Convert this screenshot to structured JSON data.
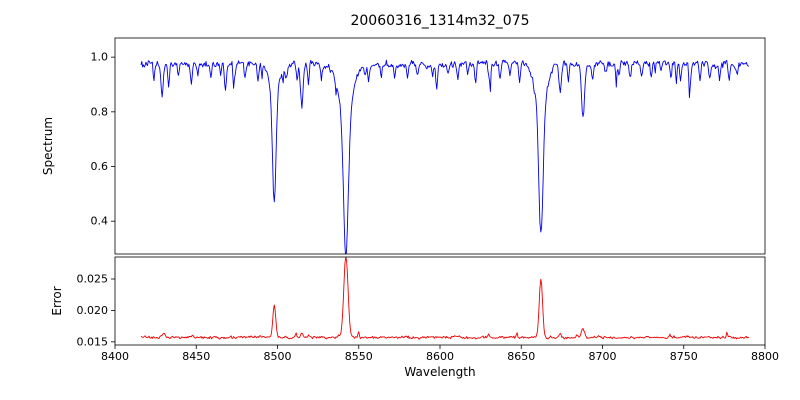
{
  "figure": {
    "background": "#ffffff",
    "frame_color": "#000000"
  },
  "chart_data": {
    "type": "line",
    "title": "20060316_1314m32_075",
    "xlabel": "Wavelength",
    "legend": null,
    "grid": false,
    "x_range": [
      8400,
      8800
    ],
    "x_data_range": [
      8416,
      8790
    ],
    "x_step": 0.5,
    "x_ticks": [
      {
        "v": 8400,
        "label": "8400"
      },
      {
        "v": 8450,
        "label": "8450"
      },
      {
        "v": 8500,
        "label": "8500"
      },
      {
        "v": 8550,
        "label": "8550"
      },
      {
        "v": 8600,
        "label": "8600"
      },
      {
        "v": 8650,
        "label": "8650"
      },
      {
        "v": 8700,
        "label": "8700"
      },
      {
        "v": 8750,
        "label": "8750"
      },
      {
        "v": 8800,
        "label": "8800"
      }
    ],
    "panels": [
      {
        "name": "spectrum",
        "ylabel": "Spectrum",
        "ylim": [
          0.28,
          1.07
        ],
        "y_ticks": [
          {
            "v": 0.4,
            "label": "0.4"
          },
          {
            "v": 0.6,
            "label": "0.6"
          },
          {
            "v": 0.8,
            "label": "0.8"
          },
          {
            "v": 1.0,
            "label": "1.0"
          }
        ],
        "color": "#0000ee",
        "baseline": 0.975,
        "noise": 0.02,
        "line_sign": -1,
        "texture": {
          "type": "dips",
          "prob": 0.035,
          "min": 0.02,
          "max": 0.11
        },
        "lines": [
          [
            8498.0,
            0.4,
            1.1
          ],
          [
            8498.0,
            0.1,
            3.0
          ],
          [
            8542.1,
            0.52,
            1.5
          ],
          [
            8542.1,
            0.17,
            4.5
          ],
          [
            8662.1,
            0.48,
            1.3
          ],
          [
            8662.1,
            0.15,
            3.5
          ],
          [
            8424,
            0.06,
            0.5
          ],
          [
            8429,
            0.12,
            0.7
          ],
          [
            8433,
            0.09,
            0.5
          ],
          [
            8439,
            0.05,
            0.5
          ],
          [
            8447,
            0.07,
            0.6
          ],
          [
            8451,
            0.04,
            0.5
          ],
          [
            8459,
            0.05,
            0.5
          ],
          [
            8465,
            0.04,
            0.4
          ],
          [
            8468,
            0.09,
            0.6
          ],
          [
            8474,
            0.04,
            0.5
          ],
          [
            8480,
            0.05,
            0.5
          ],
          [
            8488,
            0.06,
            0.5
          ],
          [
            8505,
            0.05,
            0.5
          ],
          [
            8512,
            0.06,
            0.5
          ],
          [
            8515,
            0.16,
            0.8
          ],
          [
            8519,
            0.07,
            0.5
          ],
          [
            8527,
            0.05,
            0.5
          ],
          [
            8536,
            0.04,
            0.4
          ],
          [
            8556,
            0.05,
            0.5
          ],
          [
            8564,
            0.04,
            0.5
          ],
          [
            8572,
            0.05,
            0.5
          ],
          [
            8580,
            0.04,
            0.5
          ],
          [
            8586,
            0.05,
            0.5
          ],
          [
            8598,
            0.08,
            0.6
          ],
          [
            8605,
            0.04,
            0.5
          ],
          [
            8611,
            0.05,
            0.5
          ],
          [
            8617,
            0.04,
            0.4
          ],
          [
            8622,
            0.07,
            0.5
          ],
          [
            8630,
            0.04,
            0.5
          ],
          [
            8637,
            0.05,
            0.5
          ],
          [
            8643,
            0.04,
            0.5
          ],
          [
            8649,
            0.06,
            0.5
          ],
          [
            8674,
            0.1,
            0.7
          ],
          [
            8679,
            0.07,
            0.5
          ],
          [
            8688,
            0.19,
            0.9
          ],
          [
            8694,
            0.05,
            0.5
          ],
          [
            8702,
            0.04,
            0.5
          ],
          [
            8710,
            0.05,
            0.5
          ],
          [
            8717,
            0.06,
            0.5
          ],
          [
            8724,
            0.04,
            0.5
          ],
          [
            8730,
            0.05,
            0.5
          ],
          [
            8736,
            0.04,
            0.5
          ],
          [
            8742,
            0.05,
            0.5
          ],
          [
            8748,
            0.06,
            0.5
          ],
          [
            8754,
            0.04,
            0.5
          ],
          [
            8760,
            0.05,
            0.5
          ],
          [
            8766,
            0.06,
            0.5
          ],
          [
            8772,
            0.05,
            0.5
          ],
          [
            8778,
            0.06,
            0.5
          ],
          [
            8783,
            0.04,
            0.5
          ]
        ]
      },
      {
        "name": "error",
        "ylabel": "Error",
        "ylim": [
          0.0145,
          0.0285
        ],
        "y_ticks": [
          {
            "v": 0.015,
            "label": "0.015"
          },
          {
            "v": 0.02,
            "label": "0.020"
          },
          {
            "v": 0.025,
            "label": "0.025"
          }
        ],
        "color": "#ee0000",
        "baseline": 0.0157,
        "noise": 0.00035,
        "line_sign": 1,
        "texture": {
          "type": "spikes",
          "prob": 0.03,
          "min": 0.0002,
          "max": 0.0008
        },
        "lines": [
          [
            8498.0,
            0.005,
            0.9
          ],
          [
            8542.1,
            0.013,
            1.3
          ],
          [
            8662.1,
            0.0093,
            1.0
          ],
          [
            8688,
            0.0014,
            0.9
          ],
          [
            8515,
            0.0008,
            0.7
          ],
          [
            8430,
            0.0007,
            0.8
          ],
          [
            8674,
            0.0005,
            0.7
          ]
        ]
      }
    ]
  }
}
